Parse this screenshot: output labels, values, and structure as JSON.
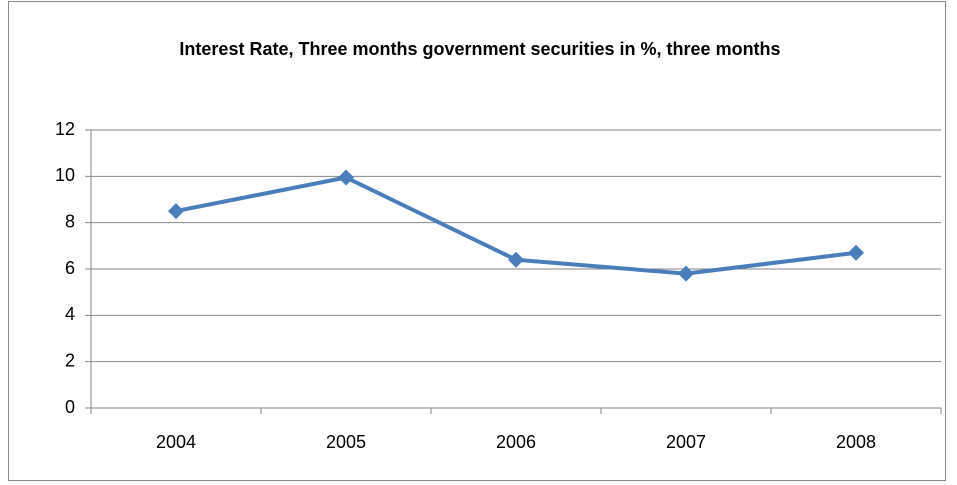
{
  "chart_data": {
    "type": "line",
    "title": "Interest Rate, Three months government securities in %, three months",
    "categories": [
      "2004",
      "2005",
      "2006",
      "2007",
      "2008"
    ],
    "series": [
      {
        "name": "Interest Rate",
        "color": "#4a7ebb",
        "values": [
          8.5,
          9.95,
          6.4,
          5.8,
          6.7
        ]
      }
    ],
    "ylim": [
      0,
      12
    ],
    "yticks": [
      0,
      2,
      4,
      6,
      8,
      10,
      12
    ],
    "grid": true
  }
}
